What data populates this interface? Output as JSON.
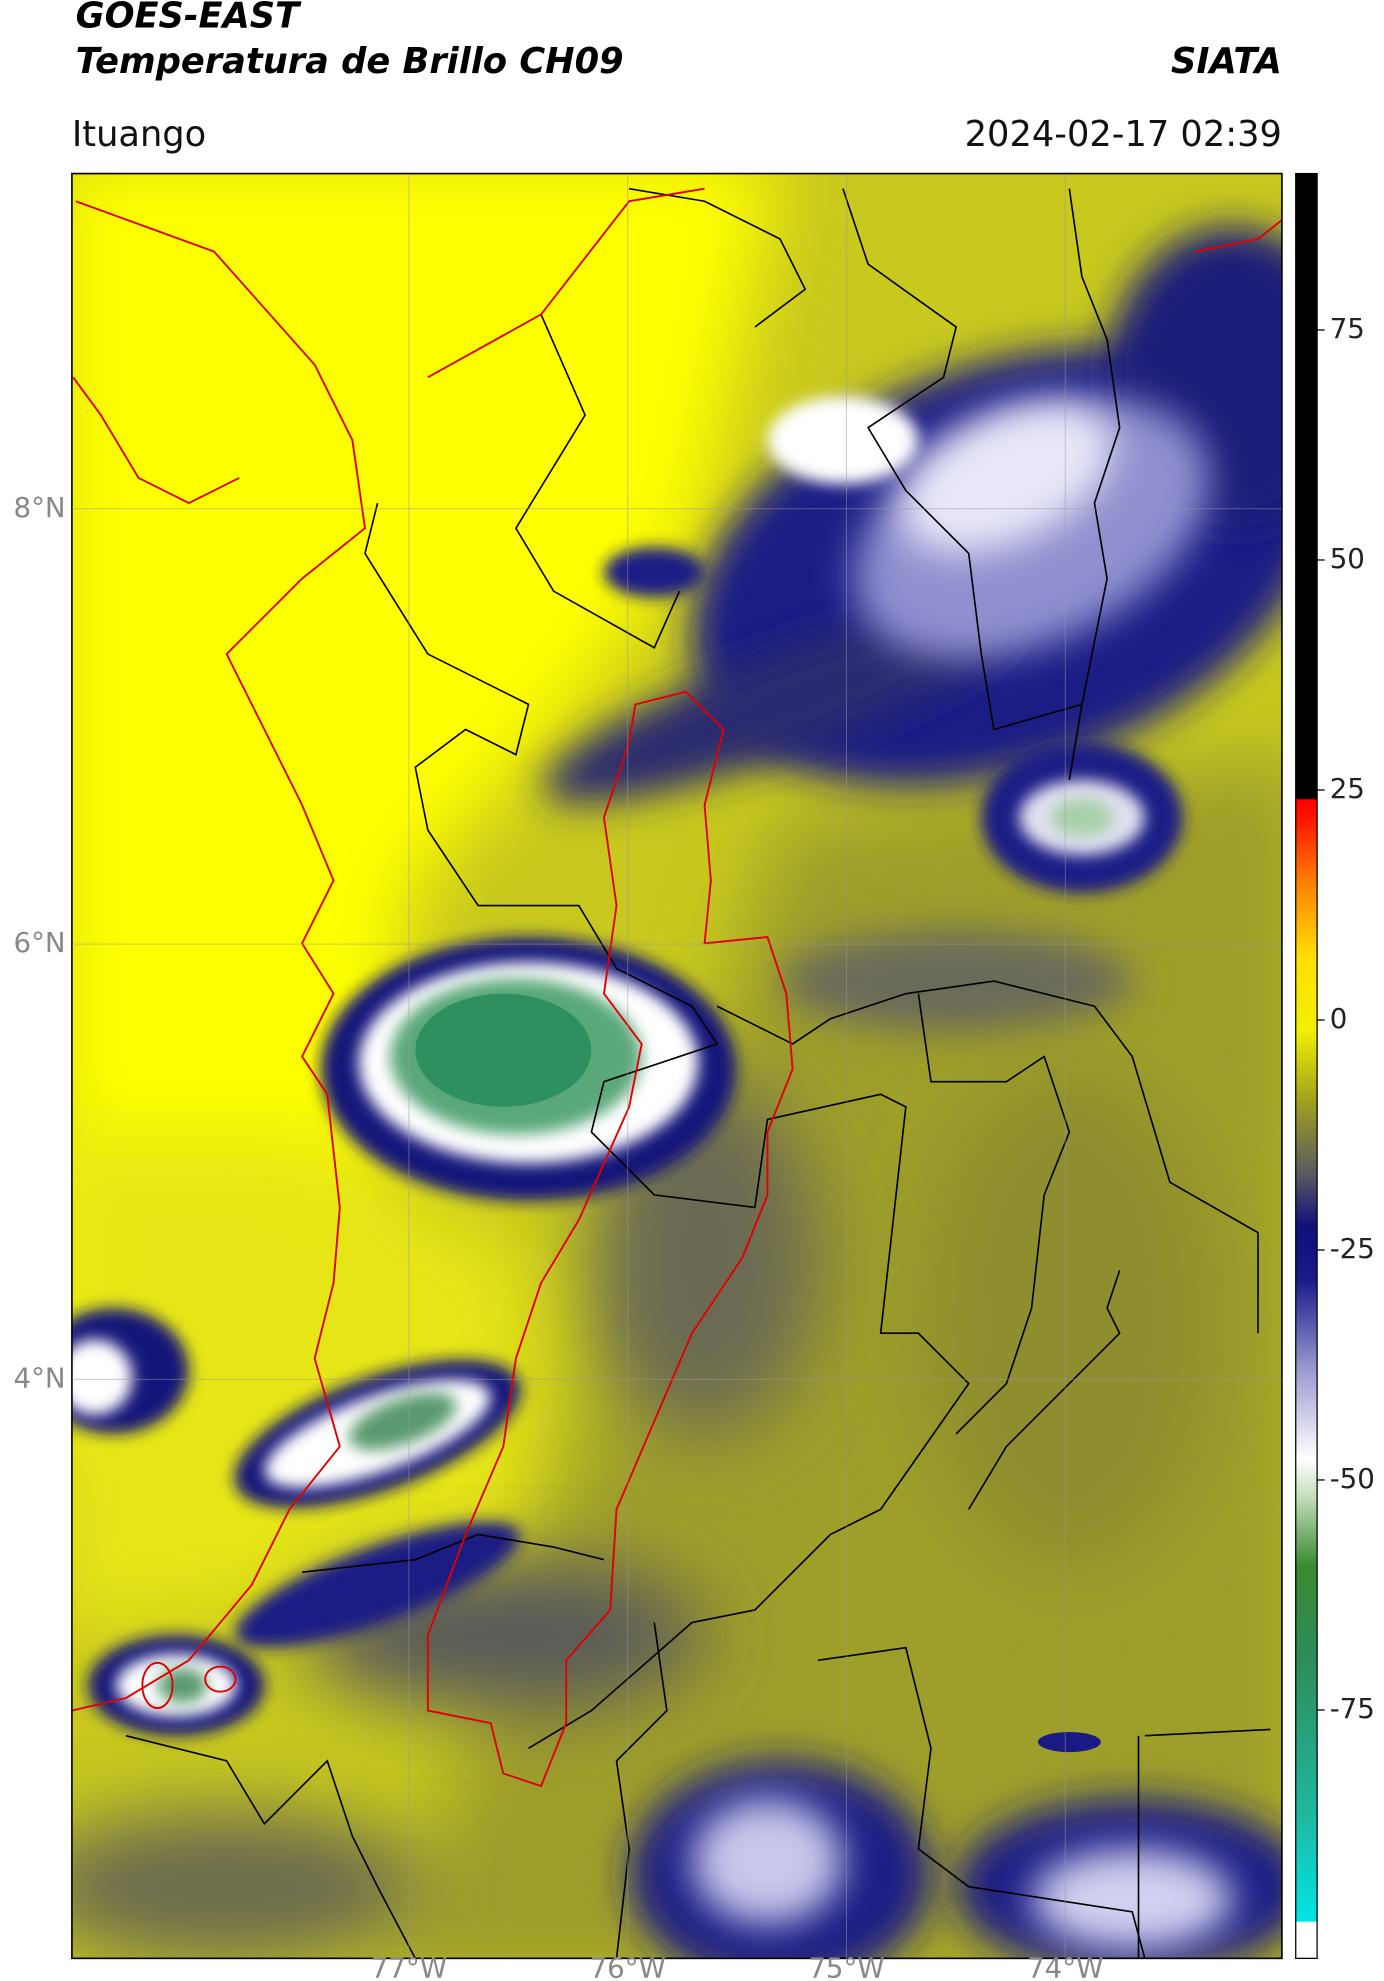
{
  "header": {
    "title_line1": "GOES-EAST",
    "title_line2": "Temperatura de Brillo CH09",
    "org": "SIATA",
    "location": "Ituango",
    "datetime": "2024-02-17 02:39"
  },
  "map": {
    "xlim": [
      -78.54,
      -73.01
    ],
    "xticks": [
      {
        "value": -77,
        "label": "77°W"
      },
      {
        "value": -76,
        "label": "76°W"
      },
      {
        "value": -75,
        "label": "75°W"
      },
      {
        "value": -74,
        "label": "74°W"
      }
    ],
    "ylim": [
      1.34,
      9.54
    ],
    "yticks": [
      {
        "value": 8,
        "label": "8°N"
      },
      {
        "value": 6,
        "label": "6°N"
      },
      {
        "value": 4,
        "label": "4°N"
      }
    ],
    "grid": true
  },
  "colorbar": {
    "clim": [
      -102,
      92
    ],
    "ticks": [
      75,
      50,
      25,
      0,
      -25,
      -50,
      -75
    ]
  }
}
